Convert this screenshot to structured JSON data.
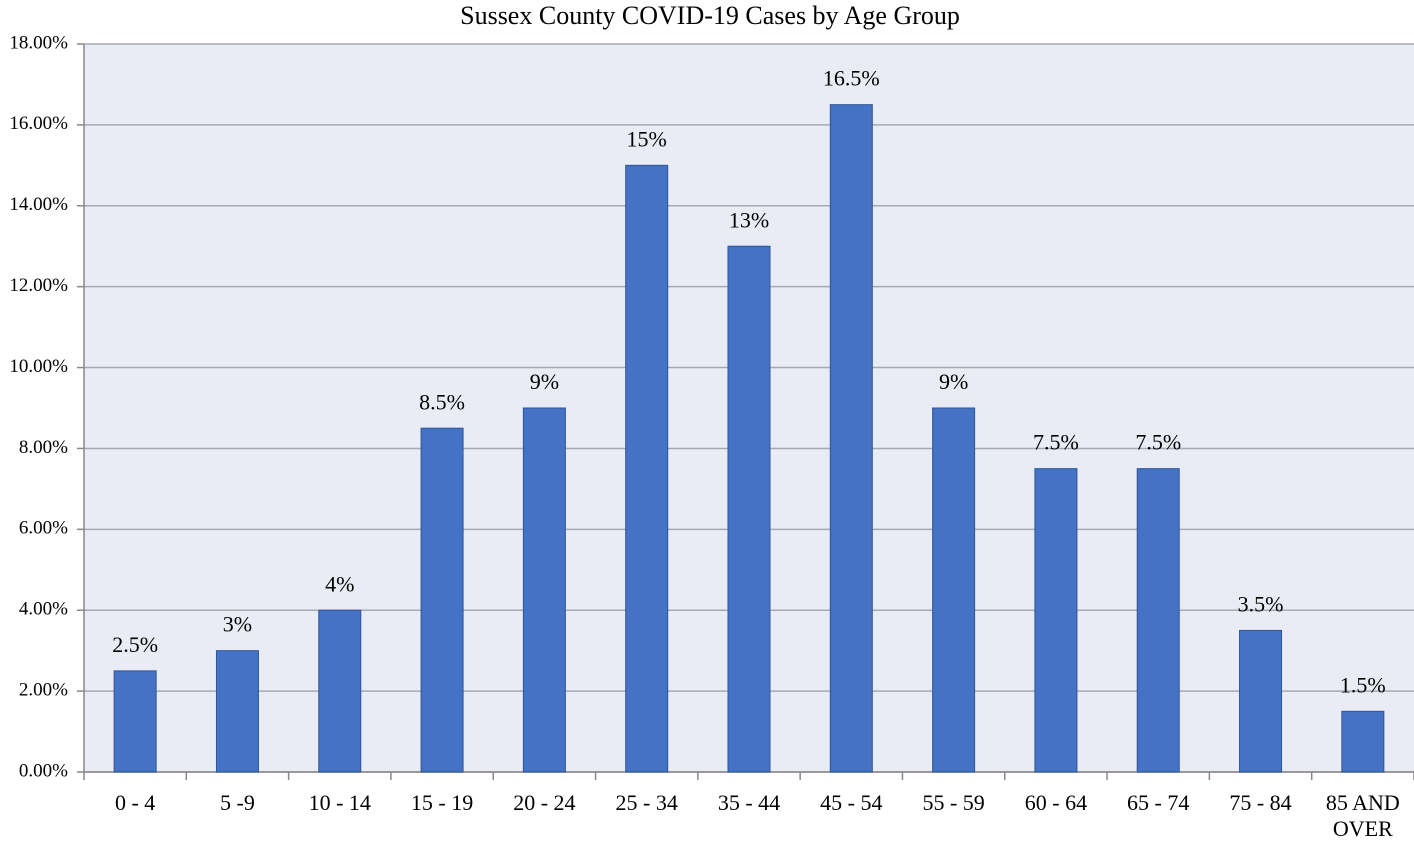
{
  "chart_data": {
    "type": "bar",
    "title": "Sussex County COVID-19 Cases by Age Group",
    "categories": [
      "0 - 4",
      "5 -9",
      "10 - 14",
      "15 - 19",
      "20 - 24",
      "25 - 34",
      "35 - 44",
      "45 - 54",
      "55 - 59",
      "60 - 64",
      "65 - 74",
      "75 - 84",
      "85 AND OVER"
    ],
    "values": [
      2.5,
      3,
      4,
      8.5,
      9,
      15,
      13,
      16.5,
      9,
      7.5,
      7.5,
      3.5,
      1.5
    ],
    "value_labels": [
      "2.5%",
      "3%",
      "4%",
      "8.5%",
      "9%",
      "15%",
      "13%",
      "16.5%",
      "9%",
      "7.5%",
      "7.5%",
      "3.5%",
      "1.5%"
    ],
    "color": "#4472c4",
    "ylim": [
      0,
      18
    ],
    "yticks": [
      {
        "value": 0,
        "label": "0.00%"
      },
      {
        "value": 2,
        "label": "2.00%"
      },
      {
        "value": 4,
        "label": "4.00%"
      },
      {
        "value": 6,
        "label": "6.00%"
      },
      {
        "value": 8,
        "label": "8.00%"
      },
      {
        "value": 10,
        "label": "10.00%"
      },
      {
        "value": 12,
        "label": "12.00%"
      },
      {
        "value": 14,
        "label": "14.00%"
      },
      {
        "value": 16,
        "label": "16.00%"
      },
      {
        "value": 18,
        "label": "18.00%"
      }
    ],
    "grid": true
  }
}
